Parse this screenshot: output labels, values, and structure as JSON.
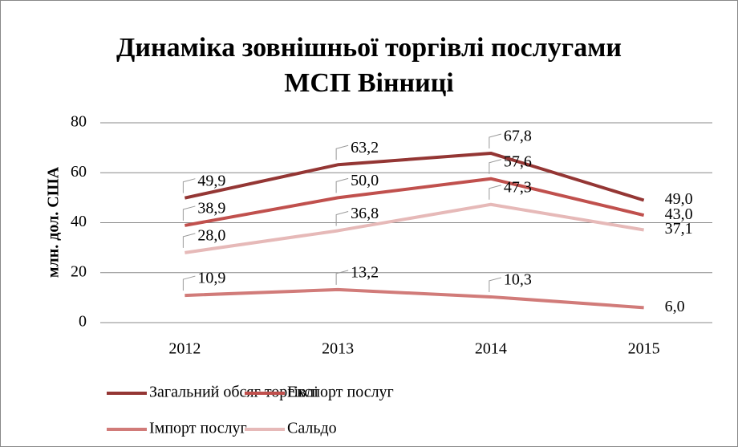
{
  "chart_data": {
    "type": "line",
    "title": "Динаміка зовнішньої торгівлі послугами МСП Вінниці",
    "y_label": "млн. дол. США",
    "categories": [
      "2012",
      "2013",
      "2014",
      "2015"
    ],
    "series": [
      {
        "name": "Загальний обсяг торгівлі",
        "color": "#943634",
        "values": [
          49.9,
          63.2,
          67.8,
          49.0
        ],
        "value_labels": [
          "49,9",
          "63,2",
          "67,8",
          "49,0"
        ]
      },
      {
        "name": "Експорт послуг",
        "color": "#c0504d",
        "values": [
          38.9,
          50.0,
          57.6,
          43.0
        ],
        "value_labels": [
          "38,9",
          "50,0",
          "57,6",
          "43,0"
        ]
      },
      {
        "name": "Імпорт послуг",
        "color": "#d17b79",
        "values": [
          10.9,
          13.2,
          10.3,
          6.0
        ],
        "value_labels": [
          "10,9",
          "13,2",
          "10,3",
          "6,0"
        ]
      },
      {
        "name": "Сальдо",
        "color": "#e6b9b8",
        "values": [
          28.0,
          36.8,
          47.3,
          37.1
        ],
        "value_labels": [
          "28,0",
          "36,8",
          "47,3",
          "37,1"
        ]
      }
    ],
    "ylim": [
      0,
      80
    ],
    "yticks": [
      0,
      20,
      40,
      60,
      80
    ],
    "grid": true
  }
}
